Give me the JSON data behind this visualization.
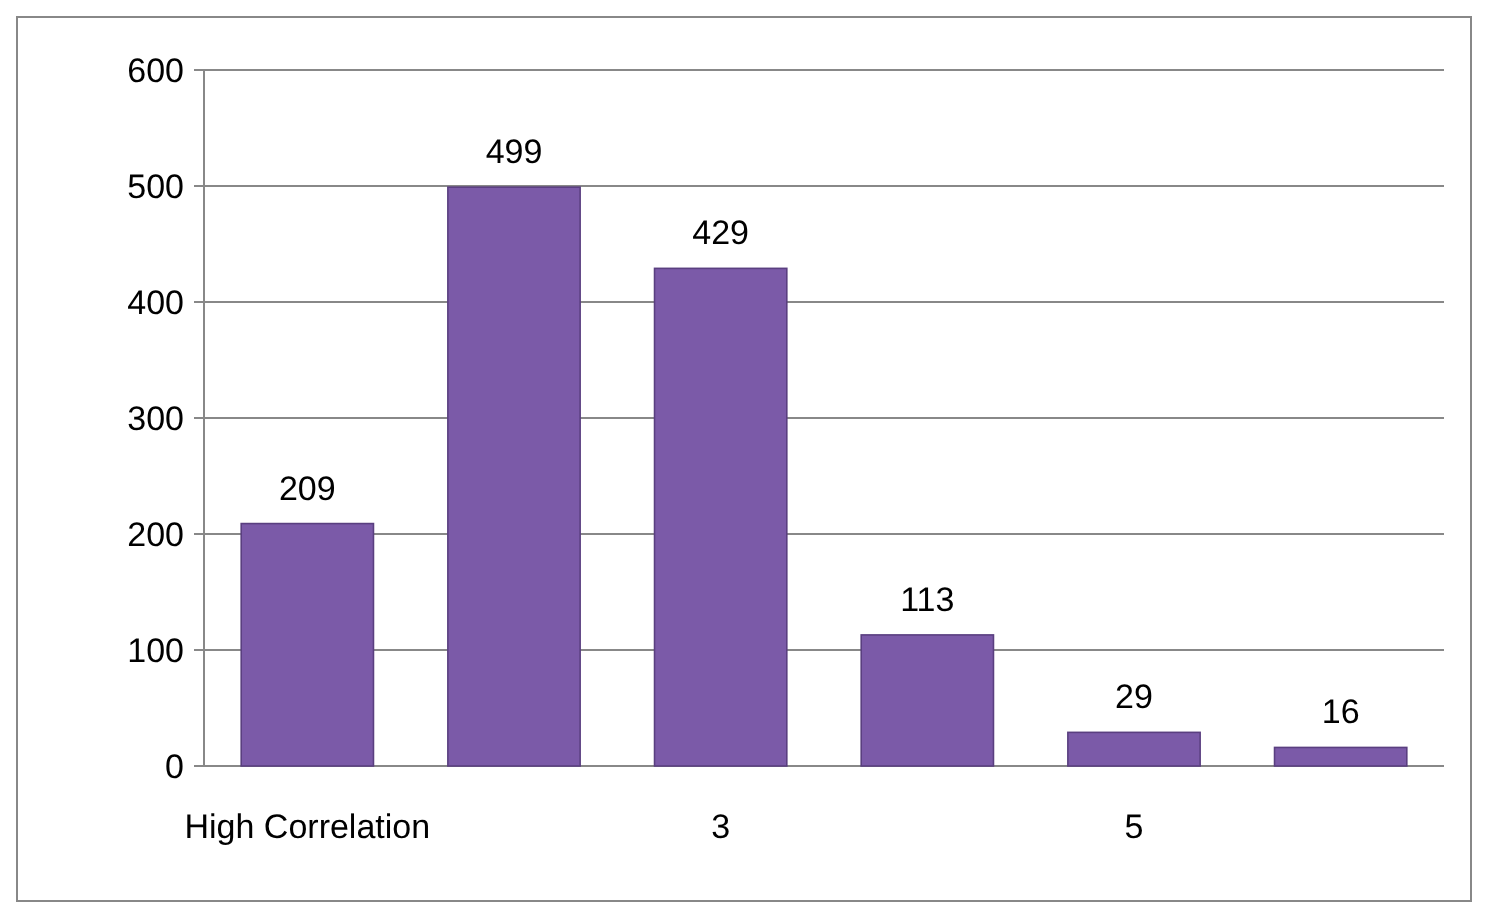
{
  "chart_data": {
    "type": "bar",
    "categories": [
      "High Correlation",
      null,
      "3",
      null,
      "5",
      null
    ],
    "values": [
      209,
      499,
      429,
      113,
      29,
      16
    ],
    "color": "#7b5aa8",
    "ylim": [
      0,
      600
    ],
    "yticks": [
      0,
      100,
      200,
      300,
      400,
      500,
      600
    ],
    "grid": "y",
    "data_labels": true
  }
}
